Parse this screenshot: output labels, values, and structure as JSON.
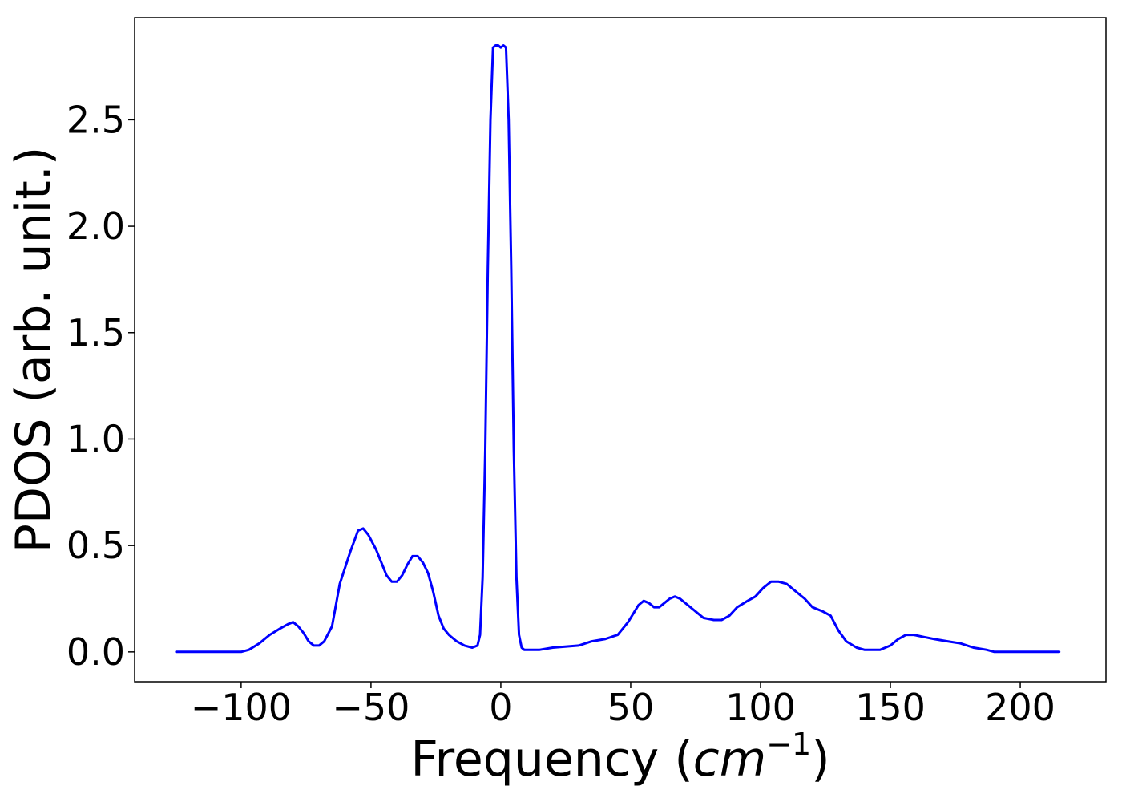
{
  "chart_data": {
    "type": "line",
    "xlabel": "Frequency (cm⁻¹)",
    "xlabel_text": "Frequency (",
    "xlabel_unit": "cm",
    "xlabel_sup": "−1",
    "xlabel_close": ")",
    "ylabel": "PDOS (arb. unit.)",
    "xlim": [
      -141,
      233
    ],
    "ylim": [
      -0.14,
      2.98
    ],
    "xticks": [
      -100,
      -50,
      0,
      50,
      100,
      150,
      200
    ],
    "xtick_labels": [
      "−100",
      "−50",
      "0",
      "50",
      "100",
      "150",
      "200"
    ],
    "yticks": [
      0.0,
      0.5,
      1.0,
      1.5,
      2.0,
      2.5
    ],
    "ytick_labels": [
      "0.0",
      "0.5",
      "1.0",
      "1.5",
      "2.0",
      "2.5"
    ],
    "grid": false,
    "series": [
      {
        "color": "#0000ff",
        "x": [
          -125,
          -100,
          -97,
          -93,
          -89,
          -85,
          -82,
          -80,
          -78,
          -76,
          -74,
          -72,
          -70,
          -68,
          -65,
          -62,
          -58,
          -55,
          -53,
          -51,
          -48,
          -46,
          -44,
          -42,
          -40,
          -38,
          -36,
          -34,
          -32,
          -30,
          -28,
          -26,
          -24,
          -22,
          -20,
          -17,
          -14,
          -11,
          -9,
          -8,
          -7,
          -6,
          -5,
          -4,
          -3,
          -2,
          -1,
          0,
          1,
          2,
          3,
          4,
          5,
          6,
          7,
          8,
          9,
          10,
          12,
          15,
          20,
          30,
          35,
          40,
          45,
          47,
          49,
          51,
          53,
          55,
          57,
          59,
          61,
          63,
          65,
          67,
          69,
          72,
          75,
          78,
          82,
          85,
          88,
          91,
          95,
          98,
          101,
          104,
          107,
          110,
          113,
          117,
          120,
          124,
          127,
          130,
          133,
          137,
          140,
          143,
          146,
          150,
          153,
          156,
          159,
          163,
          167,
          172,
          177,
          182,
          187,
          190,
          200,
          215
        ],
        "y": [
          0.0,
          0.0,
          0.01,
          0.04,
          0.08,
          0.11,
          0.13,
          0.14,
          0.12,
          0.09,
          0.05,
          0.03,
          0.03,
          0.05,
          0.12,
          0.32,
          0.47,
          0.57,
          0.58,
          0.55,
          0.48,
          0.42,
          0.36,
          0.33,
          0.33,
          0.36,
          0.41,
          0.45,
          0.45,
          0.42,
          0.37,
          0.28,
          0.17,
          0.11,
          0.08,
          0.05,
          0.03,
          0.02,
          0.03,
          0.08,
          0.35,
          0.95,
          1.8,
          2.5,
          2.84,
          2.85,
          2.85,
          2.84,
          2.85,
          2.84,
          2.5,
          1.8,
          0.95,
          0.35,
          0.08,
          0.02,
          0.01,
          0.01,
          0.01,
          0.01,
          0.02,
          0.03,
          0.05,
          0.06,
          0.08,
          0.11,
          0.14,
          0.18,
          0.22,
          0.24,
          0.23,
          0.21,
          0.21,
          0.23,
          0.25,
          0.26,
          0.25,
          0.22,
          0.19,
          0.16,
          0.15,
          0.15,
          0.17,
          0.21,
          0.24,
          0.26,
          0.3,
          0.33,
          0.33,
          0.32,
          0.29,
          0.25,
          0.21,
          0.19,
          0.17,
          0.1,
          0.05,
          0.02,
          0.01,
          0.01,
          0.01,
          0.03,
          0.06,
          0.08,
          0.08,
          0.07,
          0.06,
          0.05,
          0.04,
          0.02,
          0.01,
          0.0,
          0.0,
          0.0
        ]
      }
    ]
  }
}
